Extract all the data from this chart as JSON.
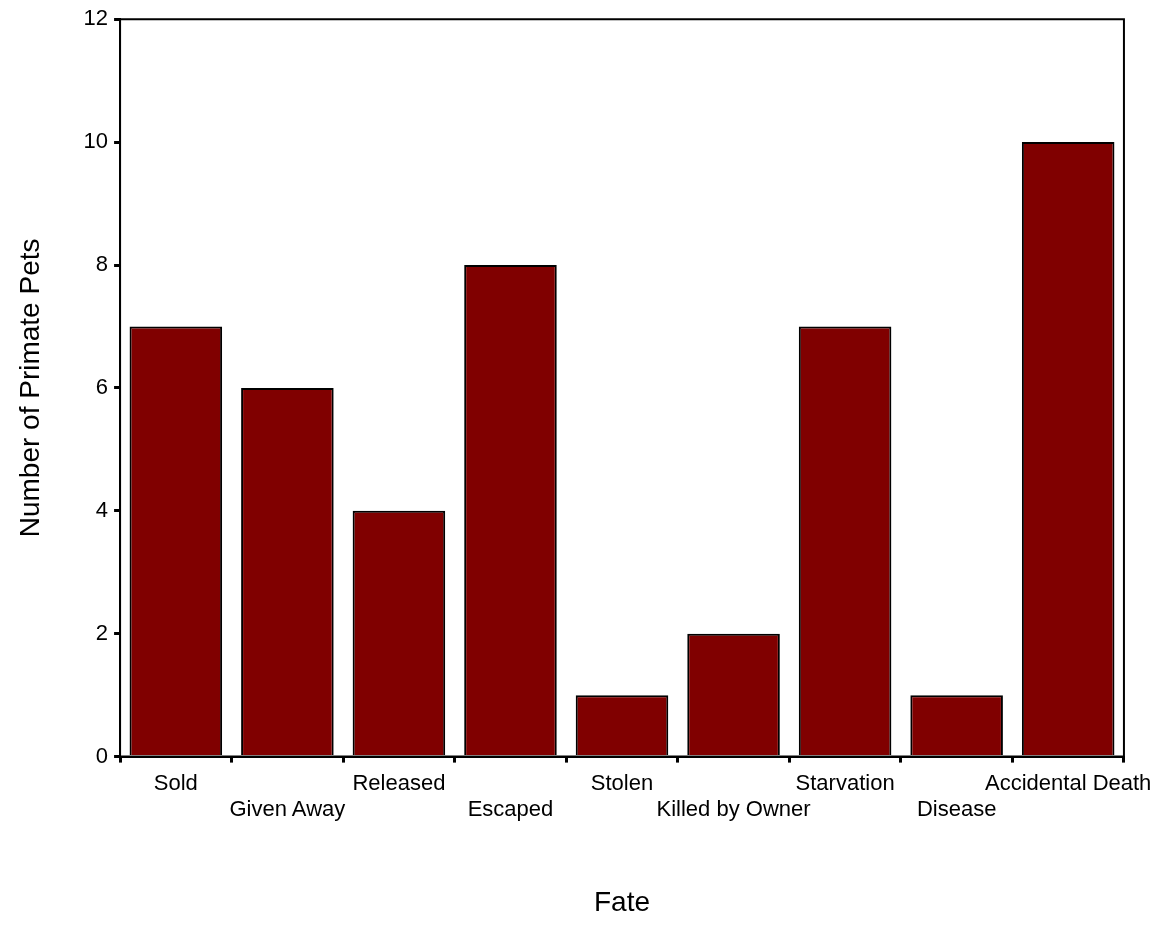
{
  "chart_data": {
    "type": "bar",
    "xlabel": "Fate",
    "ylabel": "Number of Primate Pets",
    "categories": [
      "Sold",
      "Given Away",
      "Released",
      "Escaped",
      "Stolen",
      "Killed by Owner",
      "Starvation",
      "Disease",
      "Accidental Death"
    ],
    "values": [
      7,
      6,
      4,
      8,
      1,
      2,
      7,
      1,
      10
    ],
    "color": "#800000",
    "ylim": [
      0,
      12
    ],
    "yticks": [
      0,
      2,
      4,
      6,
      8,
      10,
      12
    ],
    "grid": false,
    "legend": false
  }
}
